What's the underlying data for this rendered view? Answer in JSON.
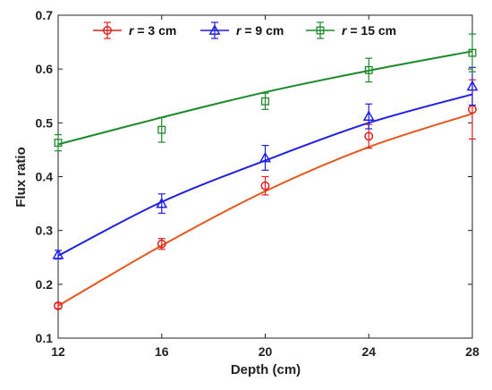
{
  "chart_data": {
    "type": "scatter",
    "title": "",
    "xlabel": "Depth (cm)",
    "ylabel": "Flux ratio",
    "xlim": [
      12,
      28
    ],
    "ylim": [
      0.1,
      0.7
    ],
    "xticks": [
      "12",
      "16",
      "20",
      "24",
      "28"
    ],
    "yticks": [
      "0.1",
      "0.2",
      "0.3",
      "0.4",
      "0.5",
      "0.6",
      "0.7"
    ],
    "grid": false,
    "legend_position": "top",
    "x": [
      12,
      16,
      20,
      24,
      28
    ],
    "series": [
      {
        "name_var": "r",
        "name_rest": " = 3 cm",
        "marker": "circle",
        "color": "#e0201b",
        "fit_color": "#e8561c",
        "values": [
          0.16,
          0.275,
          0.383,
          0.475,
          0.525
        ],
        "errors": [
          0.005,
          0.01,
          0.017,
          0.022,
          0.055
        ],
        "fit": [
          0.16,
          0.272,
          0.373,
          0.455,
          0.517
        ]
      },
      {
        "name_var": "r",
        "name_rest": " = 9 cm",
        "marker": "triangle",
        "color": "#1f1fe6",
        "fit_color": "#1f1fe6",
        "values": [
          0.255,
          0.35,
          0.435,
          0.512,
          0.568
        ],
        "errors": [
          0.008,
          0.018,
          0.023,
          0.023,
          0.035
        ],
        "fit": [
          0.253,
          0.353,
          0.43,
          0.5,
          0.553
        ]
      },
      {
        "name_var": "r",
        "name_rest": " = 15 cm",
        "marker": "square",
        "color": "#1a8a2a",
        "fit_color": "#1a8a2a",
        "values": [
          0.463,
          0.487,
          0.54,
          0.598,
          0.63
        ],
        "errors": [
          0.015,
          0.023,
          0.015,
          0.022,
          0.035
        ],
        "fit": [
          0.46,
          0.51,
          0.557,
          0.597,
          0.633
        ]
      }
    ]
  }
}
